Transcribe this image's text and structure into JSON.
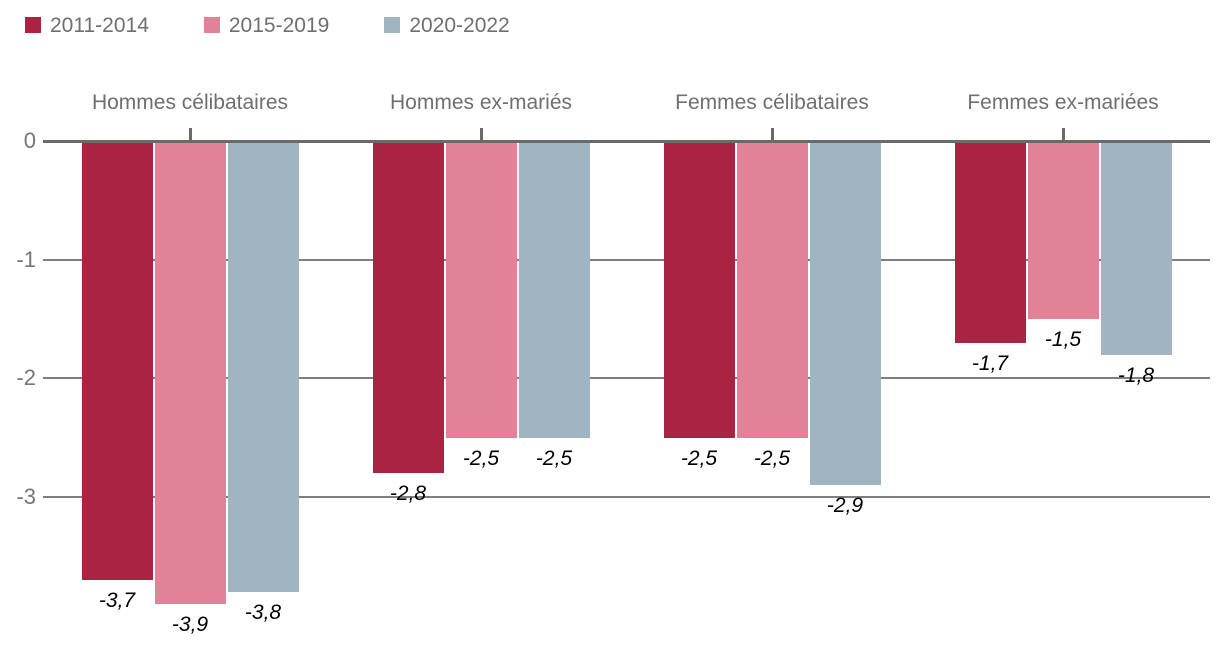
{
  "legend": {
    "items": [
      {
        "label": "2011-2014",
        "color": "#aa2342"
      },
      {
        "label": "2015-2019",
        "color": "#e18298"
      },
      {
        "label": "2020-2022",
        "color": "#a0b4c2"
      }
    ]
  },
  "chart_data": {
    "type": "bar",
    "orientation": "vertical",
    "title": "",
    "xlabel": "",
    "ylabel": "",
    "categories": [
      "Hommes célibataires",
      "Hommes ex-mariés",
      "Femmes célibataires",
      "Femmes ex-mariées"
    ],
    "series": [
      {
        "name": "2011-2014",
        "color": "#aa2342",
        "values": [
          -3.7,
          -2.8,
          -2.5,
          -1.7
        ],
        "value_labels": [
          "-3,7",
          "-2,8",
          "-2,5",
          "-1,7"
        ]
      },
      {
        "name": "2015-2019",
        "color": "#e18298",
        "values": [
          -3.9,
          -2.5,
          -2.5,
          -1.5
        ],
        "value_labels": [
          "-3,9",
          "-2,5",
          "-2,5",
          "-1,5"
        ]
      },
      {
        "name": "2020-2022",
        "color": "#a0b4c2",
        "values": [
          -3.8,
          -2.5,
          -2.9,
          -1.8
        ],
        "value_labels": [
          "-3,8",
          "-2,5",
          "-2,9",
          "-1,8"
        ]
      }
    ],
    "y_ticks": [
      "0",
      "-1",
      "-2",
      "-3"
    ],
    "y_tick_values": [
      0,
      -1,
      -2,
      -3
    ],
    "ylim": [
      -4.2,
      0
    ],
    "grid": true,
    "legend_position": "top-left",
    "decimal_separator": ","
  },
  "colors": {
    "background": "#ffffff",
    "grid": "#7e7e7e",
    "zero_line": "#6a6a6a",
    "category_text": "#6f6f6f",
    "axis_text": "#757575",
    "value_text": "#000000"
  }
}
